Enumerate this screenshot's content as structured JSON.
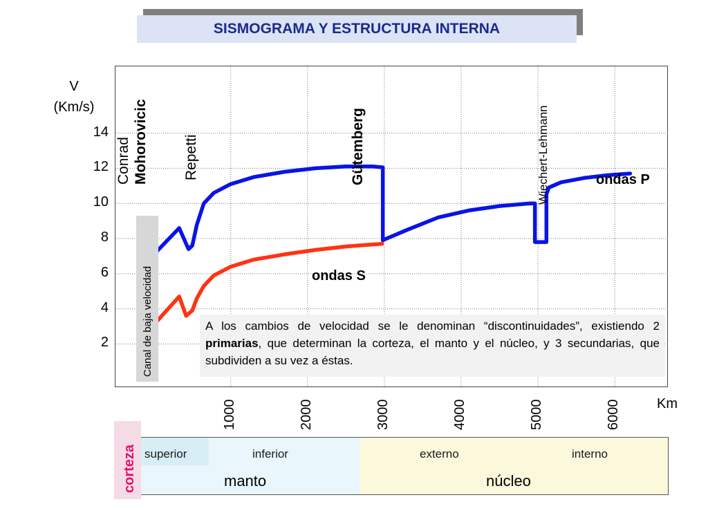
{
  "title": "SISMOGRAMA Y ESTRUCTURA INTERNA",
  "colors": {
    "title_text": "#1a2a8a",
    "title_bg": "#dbe3f5",
    "p_wave": "#0a14e6",
    "s_wave": "#ff3314",
    "corteza": "#e0116c",
    "mantle_bg": "#e9f6fb",
    "core_bg": "#fbf8dc"
  },
  "chart_data": {
    "type": "line",
    "title": "SISMOGRAMA Y ESTRUCTURA INTERNA",
    "xlabel": "Km",
    "ylabel": "V (Km/s)",
    "xlim": [
      -500,
      6700
    ],
    "ylim": [
      -0.5,
      17.8
    ],
    "x_ticks": [
      1000,
      2000,
      3000,
      4000,
      5000,
      6000
    ],
    "y_ticks": [
      2,
      4,
      6,
      8,
      10,
      12,
      14
    ],
    "grid": true,
    "series": [
      {
        "name": "ondas P",
        "color": "#0a14e6",
        "x": [
          0,
          330,
          450,
          500,
          560,
          650,
          780,
          1000,
          1300,
          1700,
          2100,
          2500,
          2850,
          2980,
          2980,
          3030,
          3300,
          3700,
          4100,
          4500,
          4900,
          4960,
          4960,
          5110,
          5110,
          5140,
          5300,
          5600,
          5900,
          6200
        ],
        "y": [
          7.1,
          8.6,
          7.4,
          7.6,
          8.8,
          10.0,
          10.6,
          11.1,
          11.5,
          11.8,
          12.0,
          12.1,
          12.1,
          12.05,
          7.9,
          8.0,
          8.5,
          9.2,
          9.6,
          9.85,
          10.0,
          10.0,
          7.8,
          7.8,
          10.5,
          10.9,
          11.2,
          11.45,
          11.6,
          11.7
        ]
      },
      {
        "name": "ondas S",
        "color": "#ff3314",
        "x": [
          0,
          330,
          420,
          500,
          560,
          650,
          780,
          1000,
          1300,
          1700,
          2100,
          2500,
          2970
        ],
        "y": [
          3.1,
          4.7,
          3.6,
          3.9,
          4.6,
          5.3,
          5.9,
          6.4,
          6.8,
          7.1,
          7.35,
          7.55,
          7.7
        ]
      }
    ],
    "series_labels": [
      {
        "text": "ondas P",
        "color": "#0a14e6"
      },
      {
        "text": "ondas S",
        "color": "#ff3314"
      }
    ],
    "annotations": {
      "discontinuities": [
        "Conrad",
        "Mohorovicic",
        "Repetti",
        "Gütemberg",
        "Wiechert-Lehmann"
      ],
      "low_velocity_channel": "Canal de baja velocidad"
    }
  },
  "note": {
    "s1": "A los cambios de velocidad se le denominan “",
    "b1": "discontinuidades",
    "s2": "”, existiendo 2 ",
    "b2": "primarias",
    "s3": ", que determinan la corteza, el manto y el ",
    "b3": "núcleo",
    "s4": ", y 3 secundarias, que subdividen a su vez a ",
    "b4": "éstas",
    "s5": "."
  },
  "layers": {
    "corteza": "corteza",
    "superior": "superior",
    "inferior": "inferior",
    "externo": "externo",
    "interno": "interno",
    "manto": "manto",
    "nucleo": "núcleo"
  }
}
